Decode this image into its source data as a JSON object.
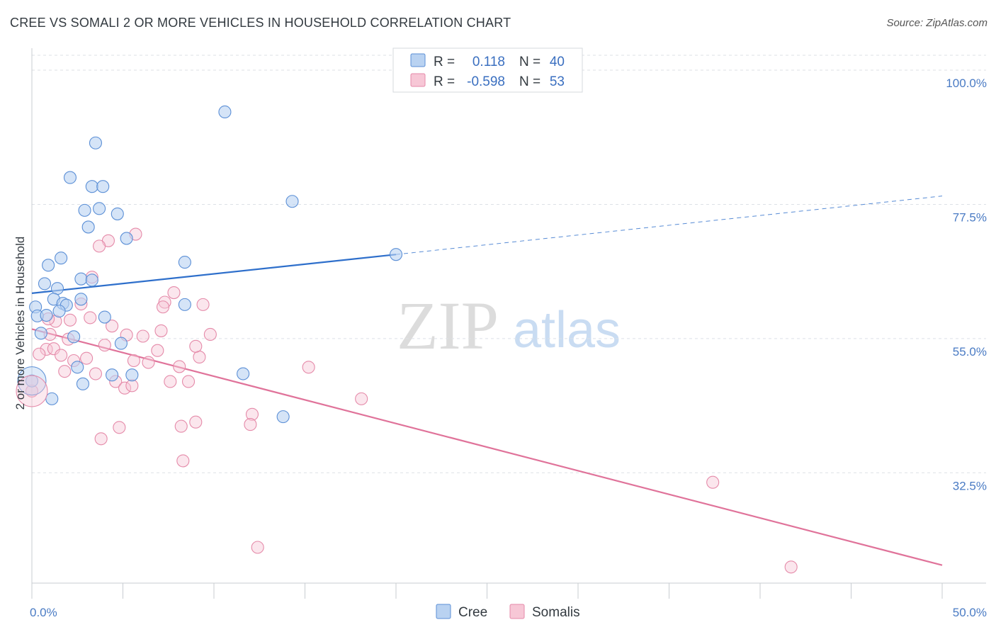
{
  "header": {
    "title": "CREE VS SOMALI 2 OR MORE VEHICLES IN HOUSEHOLD CORRELATION CHART",
    "source": "Source: ZipAtlas.com"
  },
  "watermark": {
    "zip": "ZIP",
    "atlas": "atlas"
  },
  "colors": {
    "cree": "#5b8fd6",
    "cree_fill": "#b9d2f1",
    "cree_line": "#2e6fcb",
    "somalis": "#e58aa9",
    "somalis_fill": "#f7c7d6",
    "somalis_line": "#e0739a",
    "grid": "#dde1e6",
    "tick_label": "#4a7bc4"
  },
  "legend": {
    "rows": [
      {
        "r_label": "R =",
        "r_value": "0.118",
        "n_label": "N =",
        "n_value": "40"
      },
      {
        "r_label": "R =",
        "r_value": "-0.598",
        "n_label": "N =",
        "n_value": "53"
      }
    ]
  },
  "bottom_legend": {
    "cree": "Cree",
    "somalis": "Somalis"
  },
  "chart_data": {
    "type": "scatter",
    "title": "CREE VS SOMALI 2 OR MORE VEHICLES IN HOUSEHOLD CORRELATION CHART",
    "xlabel": "",
    "ylabel": "2 or more Vehicles in Household",
    "xlim": [
      0,
      50
    ],
    "ylim": [
      14,
      102.5
    ],
    "x_tick_labels": [
      "0.0%",
      "50.0%"
    ],
    "y_ticks": [
      32.5,
      55.0,
      77.5,
      100.0
    ],
    "y_tick_labels": [
      "32.5%",
      "55.0%",
      "77.5%",
      "100.0%"
    ],
    "series": [
      {
        "name": "Cree",
        "R": 0.118,
        "N": 40,
        "trend": {
          "x": [
            0,
            20
          ],
          "y": [
            62.6,
            69.1
          ],
          "dashed_to": {
            "x": 50,
            "y": 78.9
          }
        },
        "points": [
          {
            "x": 10.6,
            "y": 93.0
          },
          {
            "x": 3.5,
            "y": 87.8
          },
          {
            "x": 2.1,
            "y": 82.0
          },
          {
            "x": 3.3,
            "y": 80.5
          },
          {
            "x": 3.9,
            "y": 80.5
          },
          {
            "x": 14.3,
            "y": 78.0
          },
          {
            "x": 2.9,
            "y": 76.5
          },
          {
            "x": 3.7,
            "y": 76.8
          },
          {
            "x": 4.7,
            "y": 75.9
          },
          {
            "x": 3.1,
            "y": 73.7
          },
          {
            "x": 5.2,
            "y": 71.8
          },
          {
            "x": 20.0,
            "y": 69.1
          },
          {
            "x": 1.6,
            "y": 68.5
          },
          {
            "x": 0.9,
            "y": 67.3
          },
          {
            "x": 8.4,
            "y": 67.8
          },
          {
            "x": 2.7,
            "y": 65.0
          },
          {
            "x": 3.3,
            "y": 64.8
          },
          {
            "x": 0.7,
            "y": 64.2
          },
          {
            "x": 1.4,
            "y": 63.4
          },
          {
            "x": 1.2,
            "y": 61.6
          },
          {
            "x": 2.7,
            "y": 61.6
          },
          {
            "x": 1.7,
            "y": 60.9
          },
          {
            "x": 1.9,
            "y": 60.6
          },
          {
            "x": 8.4,
            "y": 60.7
          },
          {
            "x": 0.2,
            "y": 60.3
          },
          {
            "x": 1.5,
            "y": 59.6
          },
          {
            "x": 0.3,
            "y": 58.8
          },
          {
            "x": 0.8,
            "y": 58.9
          },
          {
            "x": 4.0,
            "y": 58.6
          },
          {
            "x": 0.5,
            "y": 55.9
          },
          {
            "x": 2.3,
            "y": 55.3
          },
          {
            "x": 4.9,
            "y": 54.2
          },
          {
            "x": 2.5,
            "y": 50.2
          },
          {
            "x": 11.6,
            "y": 49.1
          },
          {
            "x": 4.4,
            "y": 48.9
          },
          {
            "x": 5.5,
            "y": 48.9
          },
          {
            "x": 2.8,
            "y": 47.4
          },
          {
            "x": 0.0,
            "y": 47.9
          },
          {
            "x": 1.1,
            "y": 44.9
          },
          {
            "x": 13.8,
            "y": 41.9
          }
        ]
      },
      {
        "name": "Somalis",
        "R": -0.598,
        "N": 53,
        "trend": {
          "x": [
            0,
            50
          ],
          "y": [
            56.6,
            17.0
          ]
        },
        "points": [
          {
            "x": 5.7,
            "y": 72.5
          },
          {
            "x": 4.2,
            "y": 71.4
          },
          {
            "x": 3.7,
            "y": 70.5
          },
          {
            "x": 3.3,
            "y": 65.3
          },
          {
            "x": 7.8,
            "y": 62.7
          },
          {
            "x": 7.3,
            "y": 61.1
          },
          {
            "x": 2.7,
            "y": 60.8
          },
          {
            "x": 9.4,
            "y": 60.7
          },
          {
            "x": 7.2,
            "y": 60.3
          },
          {
            "x": 3.2,
            "y": 58.5
          },
          {
            "x": 2.1,
            "y": 58.1
          },
          {
            "x": 1.3,
            "y": 57.9
          },
          {
            "x": 0.9,
            "y": 58.3
          },
          {
            "x": 4.4,
            "y": 57.1
          },
          {
            "x": 7.1,
            "y": 56.3
          },
          {
            "x": 6.1,
            "y": 55.4
          },
          {
            "x": 5.2,
            "y": 55.6
          },
          {
            "x": 9.8,
            "y": 55.7
          },
          {
            "x": 4.0,
            "y": 53.9
          },
          {
            "x": 0.8,
            "y": 53.2
          },
          {
            "x": 1.2,
            "y": 53.3
          },
          {
            "x": 0.4,
            "y": 52.4
          },
          {
            "x": 1.6,
            "y": 52.2
          },
          {
            "x": 9.2,
            "y": 51.9
          },
          {
            "x": 3.0,
            "y": 51.7
          },
          {
            "x": 2.3,
            "y": 51.3
          },
          {
            "x": 5.6,
            "y": 51.3
          },
          {
            "x": 6.4,
            "y": 51.0
          },
          {
            "x": 8.1,
            "y": 50.3
          },
          {
            "x": 15.2,
            "y": 50.2
          },
          {
            "x": 1.8,
            "y": 49.5
          },
          {
            "x": 3.5,
            "y": 49.1
          },
          {
            "x": 7.6,
            "y": 47.8
          },
          {
            "x": 8.6,
            "y": 47.8
          },
          {
            "x": 4.6,
            "y": 47.8
          },
          {
            "x": 5.1,
            "y": 46.7
          },
          {
            "x": 5.5,
            "y": 47.1
          },
          {
            "x": 0.0,
            "y": 46.2
          },
          {
            "x": 18.1,
            "y": 44.9
          },
          {
            "x": 12.1,
            "y": 42.3
          },
          {
            "x": 9.0,
            "y": 41.0
          },
          {
            "x": 12.0,
            "y": 40.6
          },
          {
            "x": 8.2,
            "y": 40.3
          },
          {
            "x": 4.8,
            "y": 40.1
          },
          {
            "x": 3.8,
            "y": 38.2
          },
          {
            "x": 8.3,
            "y": 34.5
          },
          {
            "x": 37.4,
            "y": 30.9
          },
          {
            "x": 12.4,
            "y": 20.0
          },
          {
            "x": 41.7,
            "y": 16.7
          },
          {
            "x": 1.0,
            "y": 55.7
          },
          {
            "x": 2.0,
            "y": 54.9
          },
          {
            "x": 6.9,
            "y": 53.0
          },
          {
            "x": 9.0,
            "y": 53.7
          }
        ]
      }
    ]
  }
}
